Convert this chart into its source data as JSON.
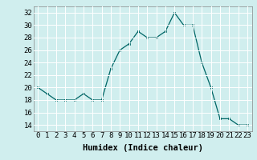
{
  "x": [
    0,
    1,
    2,
    3,
    4,
    5,
    6,
    7,
    8,
    9,
    10,
    11,
    12,
    13,
    14,
    15,
    16,
    17,
    18,
    19,
    20,
    21,
    22,
    23
  ],
  "y": [
    20,
    19,
    18,
    18,
    18,
    19,
    18,
    18,
    23,
    26,
    27,
    29,
    28,
    28,
    29,
    32,
    30,
    30,
    24,
    20,
    15,
    15,
    14,
    14
  ],
  "line_color": "#006666",
  "marker_color": "#006666",
  "bg_color": "#d0eeee",
  "grid_color": "#ffffff",
  "xlabel": "Humidex (Indice chaleur)",
  "ylim": [
    13,
    33
  ],
  "yticks": [
    14,
    16,
    18,
    20,
    22,
    24,
    26,
    28,
    30,
    32
  ],
  "xticks": [
    0,
    1,
    2,
    3,
    4,
    5,
    6,
    7,
    8,
    9,
    10,
    11,
    12,
    13,
    14,
    15,
    16,
    17,
    18,
    19,
    20,
    21,
    22,
    23
  ],
  "tick_fontsize": 6.5,
  "xlabel_fontsize": 7.5
}
